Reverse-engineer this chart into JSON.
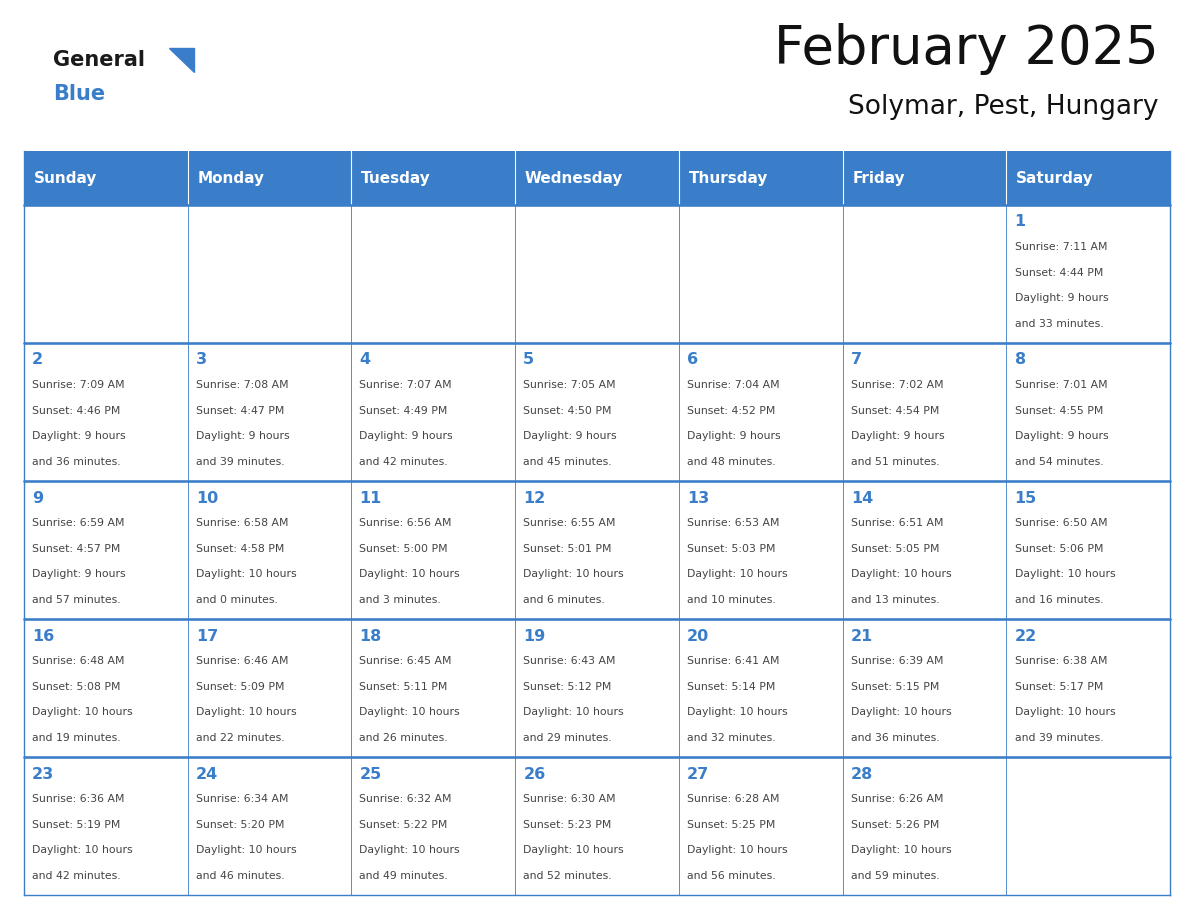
{
  "title": "February 2025",
  "subtitle": "Solymar, Pest, Hungary",
  "header_color": "#3A7DC9",
  "header_text_color": "#FFFFFF",
  "cell_bg_color": "#FFFFFF",
  "border_color": "#3A7DC9",
  "text_color": "#444444",
  "day_number_color": "#3A7DC9",
  "days_of_week": [
    "Sunday",
    "Monday",
    "Tuesday",
    "Wednesday",
    "Thursday",
    "Friday",
    "Saturday"
  ],
  "weeks": [
    [
      {
        "day": null,
        "text": ""
      },
      {
        "day": null,
        "text": ""
      },
      {
        "day": null,
        "text": ""
      },
      {
        "day": null,
        "text": ""
      },
      {
        "day": null,
        "text": ""
      },
      {
        "day": null,
        "text": ""
      },
      {
        "day": 1,
        "text": "Sunrise: 7:11 AM\nSunset: 4:44 PM\nDaylight: 9 hours\nand 33 minutes."
      }
    ],
    [
      {
        "day": 2,
        "text": "Sunrise: 7:09 AM\nSunset: 4:46 PM\nDaylight: 9 hours\nand 36 minutes."
      },
      {
        "day": 3,
        "text": "Sunrise: 7:08 AM\nSunset: 4:47 PM\nDaylight: 9 hours\nand 39 minutes."
      },
      {
        "day": 4,
        "text": "Sunrise: 7:07 AM\nSunset: 4:49 PM\nDaylight: 9 hours\nand 42 minutes."
      },
      {
        "day": 5,
        "text": "Sunrise: 7:05 AM\nSunset: 4:50 PM\nDaylight: 9 hours\nand 45 minutes."
      },
      {
        "day": 6,
        "text": "Sunrise: 7:04 AM\nSunset: 4:52 PM\nDaylight: 9 hours\nand 48 minutes."
      },
      {
        "day": 7,
        "text": "Sunrise: 7:02 AM\nSunset: 4:54 PM\nDaylight: 9 hours\nand 51 minutes."
      },
      {
        "day": 8,
        "text": "Sunrise: 7:01 AM\nSunset: 4:55 PM\nDaylight: 9 hours\nand 54 minutes."
      }
    ],
    [
      {
        "day": 9,
        "text": "Sunrise: 6:59 AM\nSunset: 4:57 PM\nDaylight: 9 hours\nand 57 minutes."
      },
      {
        "day": 10,
        "text": "Sunrise: 6:58 AM\nSunset: 4:58 PM\nDaylight: 10 hours\nand 0 minutes."
      },
      {
        "day": 11,
        "text": "Sunrise: 6:56 AM\nSunset: 5:00 PM\nDaylight: 10 hours\nand 3 minutes."
      },
      {
        "day": 12,
        "text": "Sunrise: 6:55 AM\nSunset: 5:01 PM\nDaylight: 10 hours\nand 6 minutes."
      },
      {
        "day": 13,
        "text": "Sunrise: 6:53 AM\nSunset: 5:03 PM\nDaylight: 10 hours\nand 10 minutes."
      },
      {
        "day": 14,
        "text": "Sunrise: 6:51 AM\nSunset: 5:05 PM\nDaylight: 10 hours\nand 13 minutes."
      },
      {
        "day": 15,
        "text": "Sunrise: 6:50 AM\nSunset: 5:06 PM\nDaylight: 10 hours\nand 16 minutes."
      }
    ],
    [
      {
        "day": 16,
        "text": "Sunrise: 6:48 AM\nSunset: 5:08 PM\nDaylight: 10 hours\nand 19 minutes."
      },
      {
        "day": 17,
        "text": "Sunrise: 6:46 AM\nSunset: 5:09 PM\nDaylight: 10 hours\nand 22 minutes."
      },
      {
        "day": 18,
        "text": "Sunrise: 6:45 AM\nSunset: 5:11 PM\nDaylight: 10 hours\nand 26 minutes."
      },
      {
        "day": 19,
        "text": "Sunrise: 6:43 AM\nSunset: 5:12 PM\nDaylight: 10 hours\nand 29 minutes."
      },
      {
        "day": 20,
        "text": "Sunrise: 6:41 AM\nSunset: 5:14 PM\nDaylight: 10 hours\nand 32 minutes."
      },
      {
        "day": 21,
        "text": "Sunrise: 6:39 AM\nSunset: 5:15 PM\nDaylight: 10 hours\nand 36 minutes."
      },
      {
        "day": 22,
        "text": "Sunrise: 6:38 AM\nSunset: 5:17 PM\nDaylight: 10 hours\nand 39 minutes."
      }
    ],
    [
      {
        "day": 23,
        "text": "Sunrise: 6:36 AM\nSunset: 5:19 PM\nDaylight: 10 hours\nand 42 minutes."
      },
      {
        "day": 24,
        "text": "Sunrise: 6:34 AM\nSunset: 5:20 PM\nDaylight: 10 hours\nand 46 minutes."
      },
      {
        "day": 25,
        "text": "Sunrise: 6:32 AM\nSunset: 5:22 PM\nDaylight: 10 hours\nand 49 minutes."
      },
      {
        "day": 26,
        "text": "Sunrise: 6:30 AM\nSunset: 5:23 PM\nDaylight: 10 hours\nand 52 minutes."
      },
      {
        "day": 27,
        "text": "Sunrise: 6:28 AM\nSunset: 5:25 PM\nDaylight: 10 hours\nand 56 minutes."
      },
      {
        "day": 28,
        "text": "Sunrise: 6:26 AM\nSunset: 5:26 PM\nDaylight: 10 hours\nand 59 minutes."
      },
      {
        "day": null,
        "text": ""
      }
    ]
  ],
  "logo_general_color": "#1a1a1a",
  "logo_blue_color": "#3A7DC9",
  "fig_bg": "#FFFFFF",
  "fig_width": 11.88,
  "fig_height": 9.18,
  "dpi": 100
}
